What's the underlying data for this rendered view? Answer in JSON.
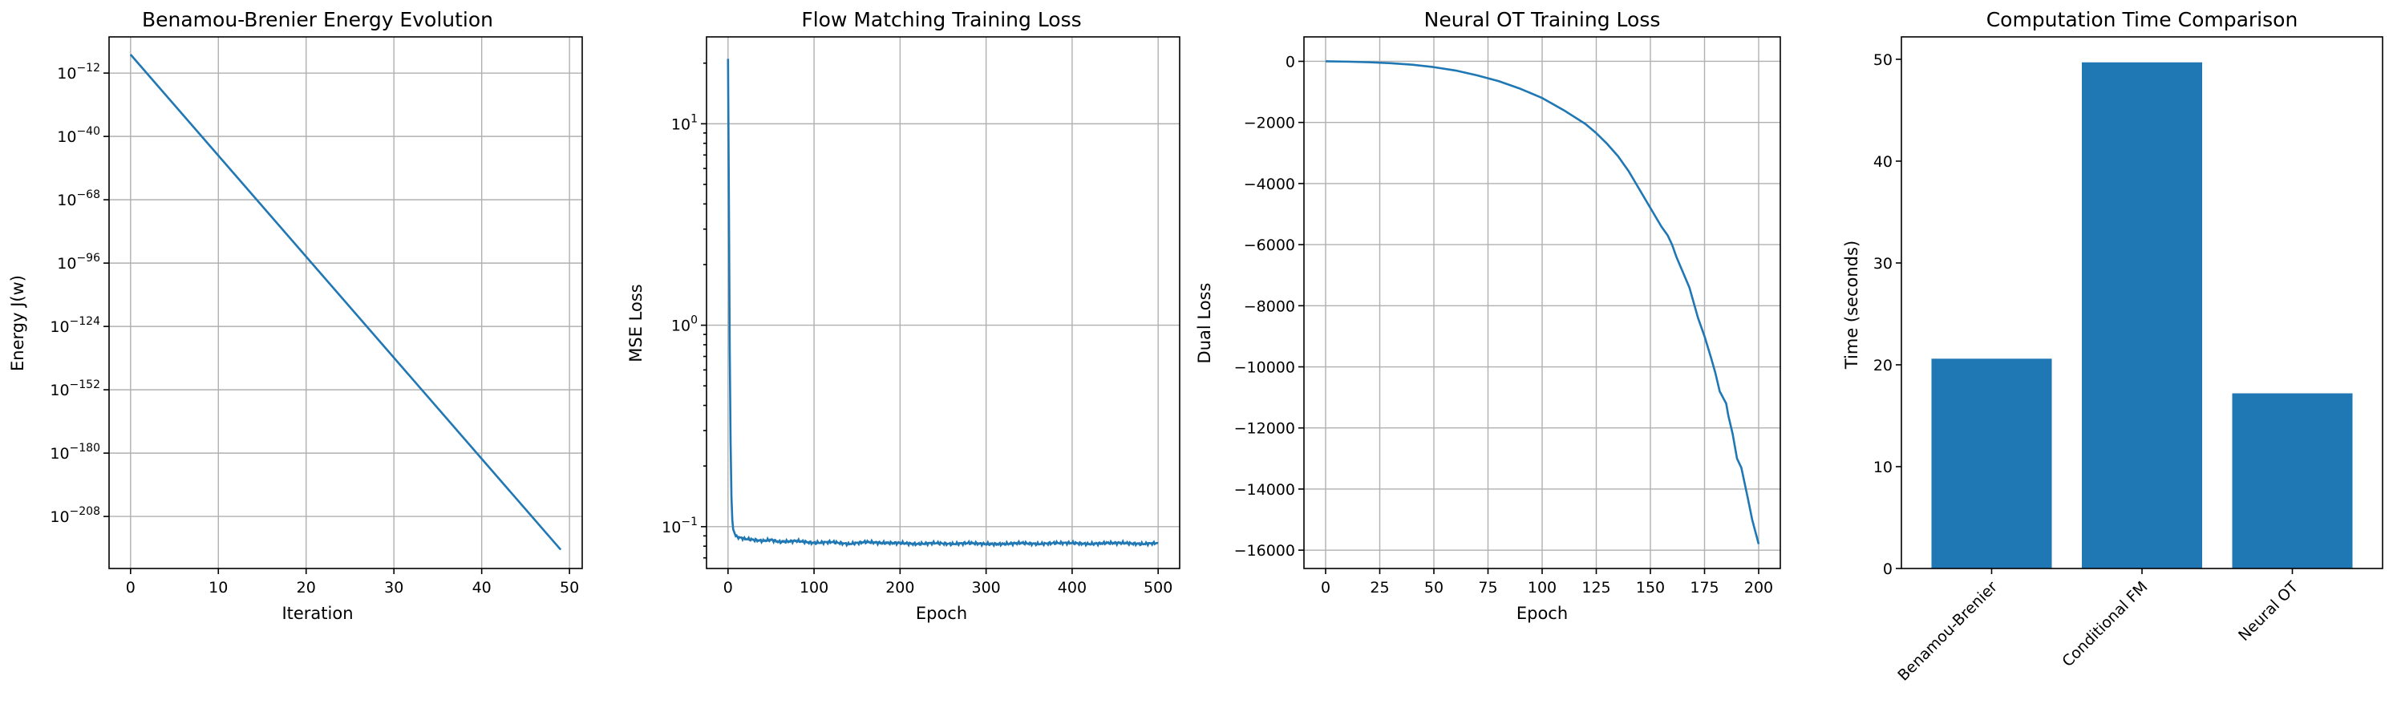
{
  "chart_data": [
    {
      "type": "line",
      "title": "Benamou-Brenier Energy Evolution",
      "xlabel": "Iteration",
      "ylabel": "Energy J(w)",
      "yscale": "log",
      "xlim": [
        -2.45,
        51.45
      ],
      "ylim_log10": [
        -231,
        4
      ],
      "xticks": [
        0,
        10,
        20,
        30,
        40,
        50
      ],
      "ytick_exponents": [
        -12,
        -40,
        -68,
        -96,
        -124,
        -152,
        -180,
        -208
      ],
      "ytick_base": "10",
      "grid": true,
      "series": [
        {
          "color": "#1f77b4",
          "x": [
            0,
            49
          ],
          "log10_y": [
            -3.8,
            -222.7
          ]
        }
      ]
    },
    {
      "type": "line",
      "title": "Flow Matching Training Loss",
      "xlabel": "Epoch",
      "ylabel": "MSE Loss",
      "yscale": "log",
      "xlim": [
        -25,
        525
      ],
      "ylim": [
        0.062,
        27
      ],
      "xticks": [
        0,
        100,
        200,
        300,
        400,
        500
      ],
      "ytick_exponents": [
        1,
        0,
        -1
      ],
      "ytick_base": "10",
      "grid": true,
      "series": [
        {
          "color": "#1f77b4",
          "x": [
            0,
            1,
            2,
            3,
            4,
            5,
            6,
            8,
            10,
            15,
            20,
            30,
            40,
            50,
            60,
            80,
            100,
            120,
            140,
            160,
            180,
            200,
            220,
            240,
            260,
            280,
            300,
            320,
            340,
            360,
            380,
            400,
            420,
            440,
            460,
            480,
            500
          ],
          "y": [
            21.0,
            4.2,
            0.75,
            0.26,
            0.14,
            0.108,
            0.097,
            0.092,
            0.089,
            0.088,
            0.087,
            0.086,
            0.085,
            0.086,
            0.084,
            0.085,
            0.083,
            0.084,
            0.082,
            0.084,
            0.083,
            0.083,
            0.082,
            0.083,
            0.082,
            0.083,
            0.082,
            0.082,
            0.083,
            0.082,
            0.083,
            0.083,
            0.082,
            0.083,
            0.083,
            0.082,
            0.083
          ]
        }
      ]
    },
    {
      "type": "line",
      "title": "Neural OT Training Loss",
      "xlabel": "Epoch",
      "ylabel": "Dual Loss",
      "yscale": "linear",
      "xlim": [
        -10,
        210
      ],
      "ylim": [
        -16600,
        800
      ],
      "xticks": [
        0,
        25,
        50,
        75,
        100,
        125,
        150,
        175,
        200
      ],
      "yticks": [
        0,
        -2000,
        -4000,
        -6000,
        -8000,
        -10000,
        -12000,
        -14000,
        -16000
      ],
      "grid": true,
      "series": [
        {
          "color": "#1f77b4",
          "x": [
            0,
            10,
            20,
            30,
            40,
            50,
            60,
            70,
            80,
            90,
            100,
            110,
            120,
            125,
            130,
            135,
            140,
            145,
            150,
            155,
            158,
            160,
            162,
            165,
            168,
            170,
            172,
            175,
            178,
            180,
            182,
            185,
            186,
            188,
            190,
            192,
            195,
            197,
            200
          ],
          "y": [
            0,
            -10,
            -30,
            -60,
            -110,
            -190,
            -300,
            -460,
            -650,
            -900,
            -1200,
            -1600,
            -2050,
            -2350,
            -2700,
            -3100,
            -3600,
            -4200,
            -4800,
            -5400,
            -5700,
            -6000,
            -6400,
            -6900,
            -7400,
            -7900,
            -8400,
            -9000,
            -9700,
            -10200,
            -10800,
            -11200,
            -11600,
            -12200,
            -13000,
            -13300,
            -14300,
            -15000,
            -15800
          ]
        }
      ]
    },
    {
      "type": "bar",
      "title": "Computation Time Comparison",
      "ylabel": "Time (seconds)",
      "xlabel": "",
      "categories": [
        "Benamou-Brenier",
        "Conditional FM",
        "Neural OT"
      ],
      "values": [
        20.6,
        49.7,
        17.2
      ],
      "ylim": [
        0,
        52.2
      ],
      "yticks": [
        0,
        10,
        20,
        30,
        40,
        50
      ],
      "grid": false,
      "color": "#1f77b4"
    }
  ]
}
